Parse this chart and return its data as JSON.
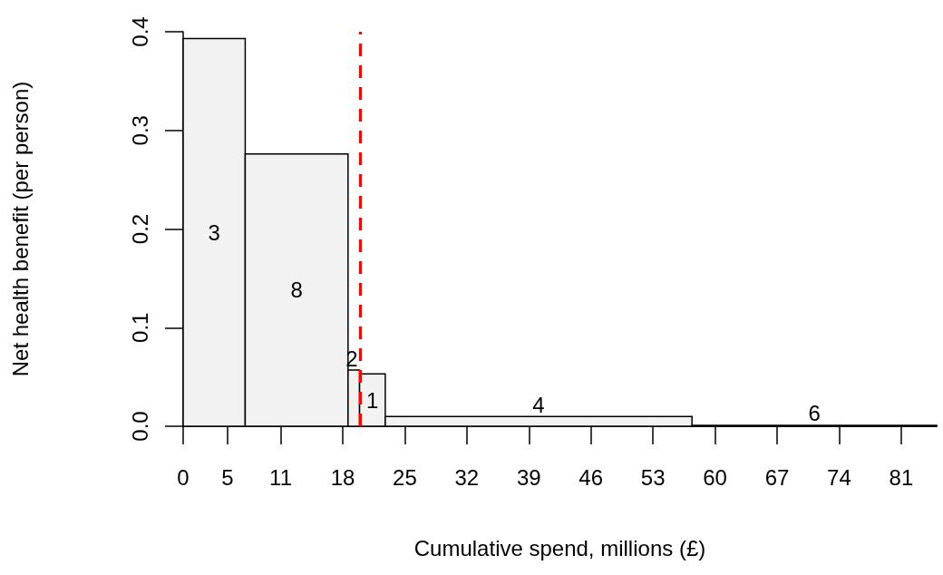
{
  "chart_data": {
    "type": "histogram",
    "xlabel": "Cumulative spend, millions (£)",
    "ylabel": "Net health benefit (per person)",
    "bins": [
      0,
      7,
      18.6,
      19.9,
      22.8,
      57.4,
      85
    ],
    "values": [
      0.393,
      0.276,
      0.057,
      0.053,
      0.01,
      0.001
    ],
    "color": "#f2f2f2",
    "xlim": [
      0,
      85
    ],
    "xticks": [
      0,
      5,
      11,
      18,
      25,
      32,
      39,
      46,
      53,
      60,
      67,
      74,
      81
    ],
    "ylim": [
      0,
      0.4
    ],
    "yticks": [
      {
        "value": 0,
        "label": "0.0"
      },
      {
        "value": 0.1,
        "label": "0.1"
      },
      {
        "value": 0.2,
        "label": "0.2"
      },
      {
        "value": 0.3,
        "label": "0.3"
      },
      {
        "value": 0.4,
        "label": "0.4"
      }
    ],
    "ref_lines": [
      {
        "axis": "x",
        "value": 20,
        "color": "#ff0000",
        "line_style": "dashed"
      }
    ],
    "annotations": [
      "3",
      "8",
      "2",
      "1",
      "4",
      "6"
    ]
  }
}
